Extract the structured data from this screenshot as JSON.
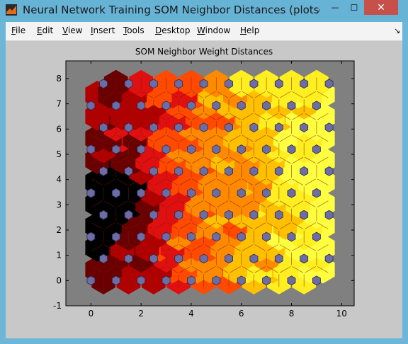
{
  "window": {
    "title": "Neural Network Training SOM Neighbor Distances (plotsomnd), ...",
    "close_glyph": "✕",
    "minimize_glyph": "—",
    "maximize_glyph": "☐"
  },
  "menu": {
    "items": [
      {
        "label": "File",
        "u": "F",
        "rest": "ile"
      },
      {
        "label": "Edit",
        "u": "E",
        "rest": "dit"
      },
      {
        "label": "View",
        "u": "V",
        "rest": "iew"
      },
      {
        "label": "Insert",
        "u": "I",
        "rest": "nsert"
      },
      {
        "label": "Tools",
        "u": "T",
        "rest": "ools"
      },
      {
        "label": "Desktop",
        "u": "D",
        "rest": "esktop"
      },
      {
        "label": "Window",
        "u": "W",
        "rest": "indow"
      },
      {
        "label": "Help",
        "u": "H",
        "rest": "elp"
      }
    ],
    "dock_glyph": "↘"
  },
  "chart_data": {
    "type": "heatmap",
    "title": "SOM Neighbor Weight Distances",
    "grid": "hexagonal 10x10",
    "xlim": [
      -1,
      10.5
    ],
    "ylim": [
      -1,
      8.7
    ],
    "xticks": [
      0,
      2,
      4,
      6,
      8,
      10
    ],
    "yticks": [
      -1,
      0,
      1,
      2,
      3,
      4,
      5,
      6,
      7,
      8
    ],
    "colormap": [
      "#000000",
      "#6a0000",
      "#b00000",
      "#e01010",
      "#ff4a00",
      "#ff8a00",
      "#ffc000",
      "#ffee20",
      "#ffff40"
    ],
    "colors": {
      "axes_bg": "#808080",
      "neuron": "#6c6ca6",
      "figure_bg": "#c8c8c8"
    },
    "neuron_rows": 10,
    "neuron_cols": 10
  }
}
